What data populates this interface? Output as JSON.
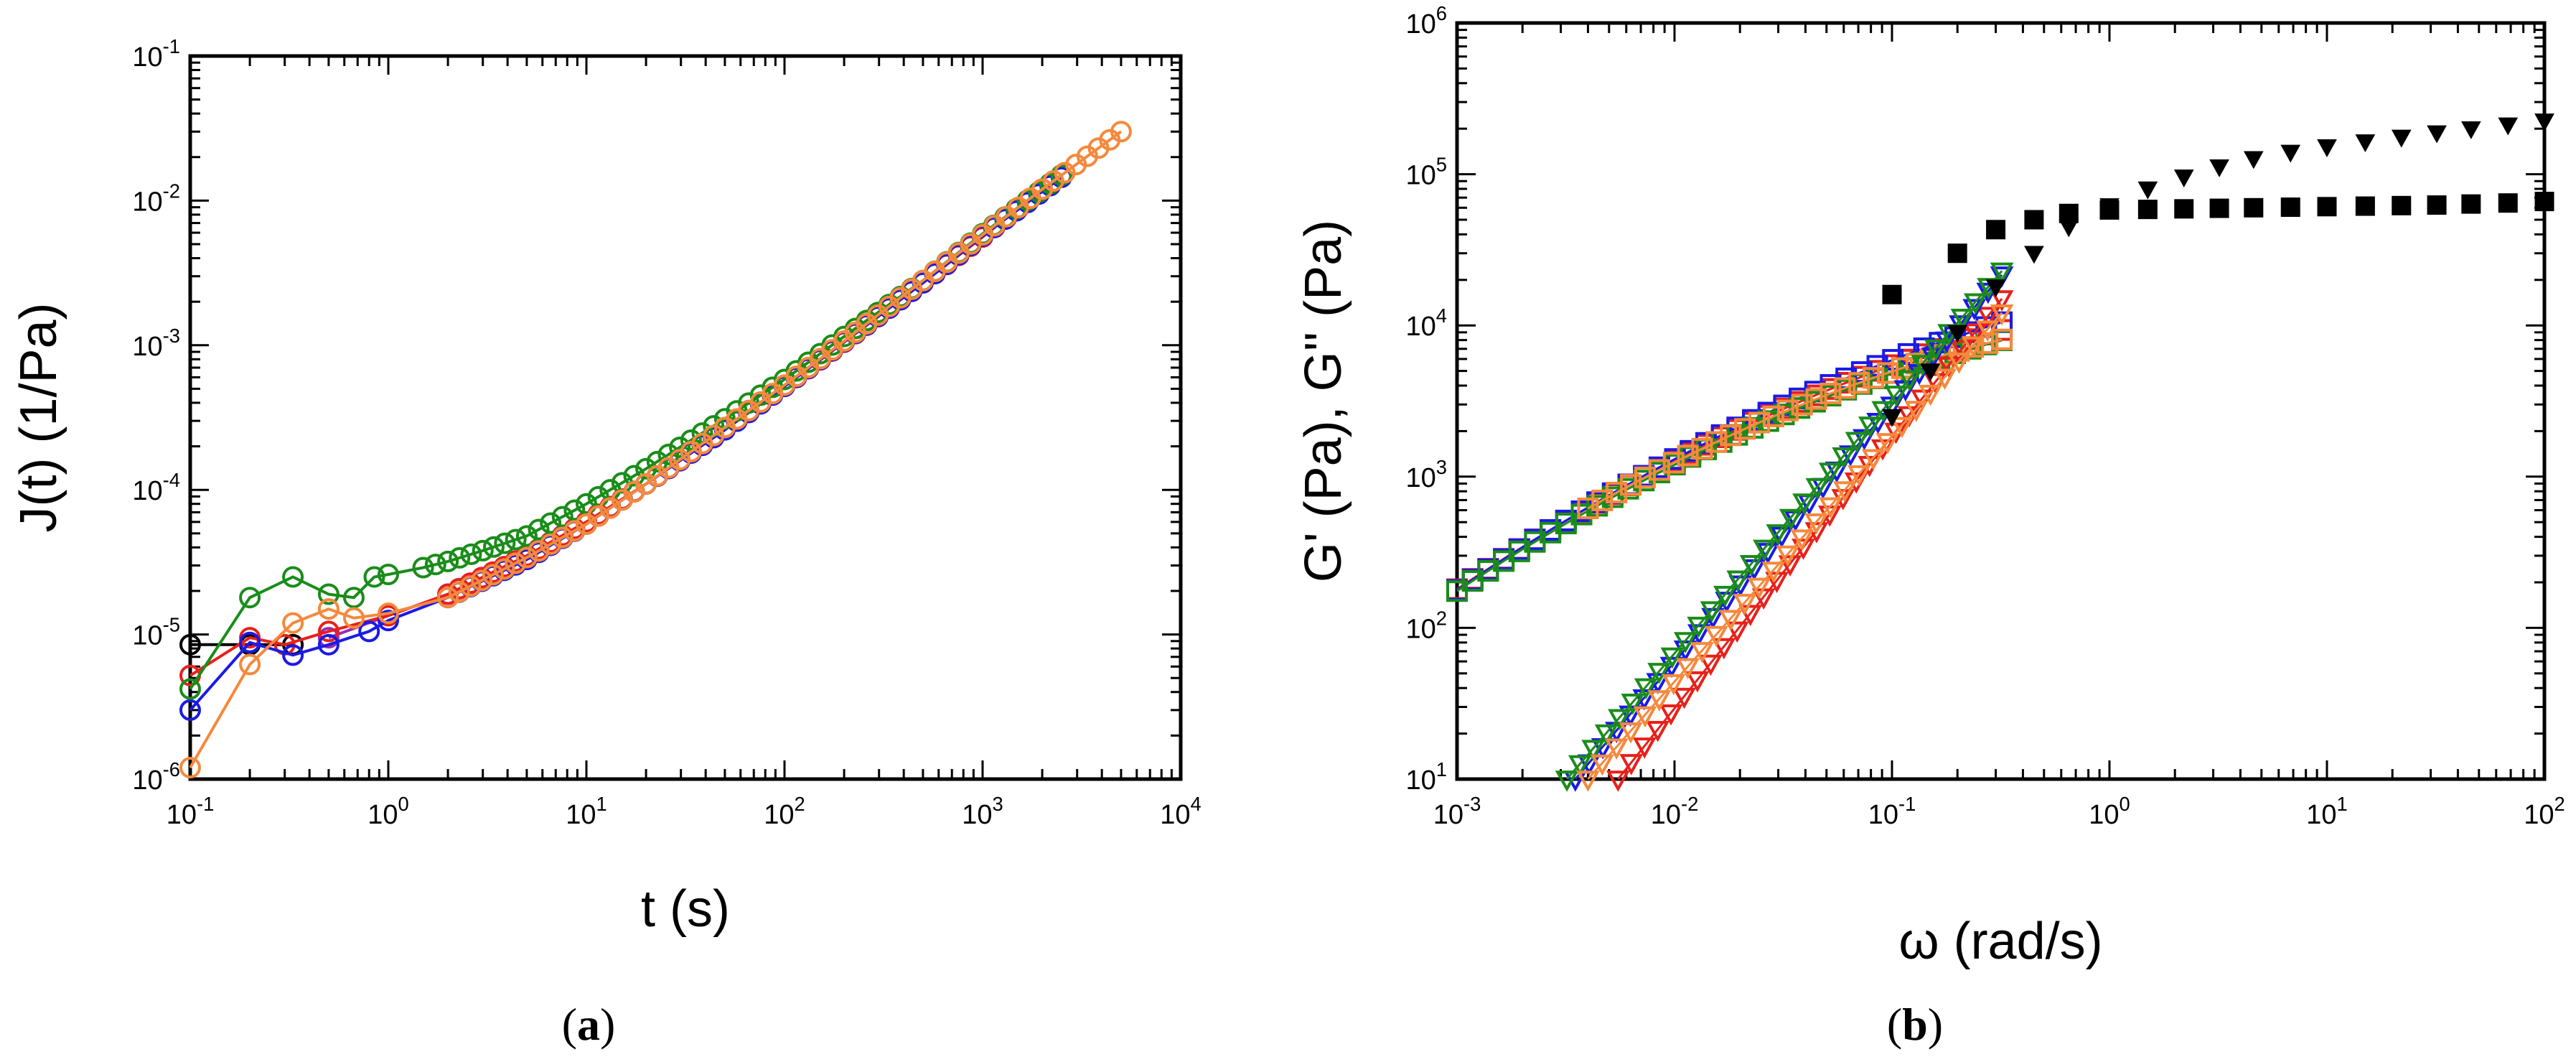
{
  "figure": {
    "panels": [
      {
        "label_prefix": "(",
        "label_letter": "a",
        "label_suffix": ")"
      },
      {
        "label_prefix": "(",
        "label_letter": "b",
        "label_suffix": ")"
      }
    ]
  },
  "chart_data": [
    {
      "id": "a",
      "type": "line",
      "xscale": "log",
      "yscale": "log",
      "xlabel": "t (s)",
      "ylabel": "J(t) (1/Pa)",
      "xlim": [
        0.1,
        10000
      ],
      "ylim": [
        1e-06,
        0.1
      ],
      "xticks": [
        {
          "value": 0.1,
          "base": "10",
          "exp": "-1"
        },
        {
          "value": 1,
          "base": "10",
          "exp": "0"
        },
        {
          "value": 10,
          "base": "10",
          "exp": "1"
        },
        {
          "value": 100,
          "base": "10",
          "exp": "2"
        },
        {
          "value": 1000,
          "base": "10",
          "exp": "3"
        },
        {
          "value": 10000,
          "base": "10",
          "exp": "4"
        }
      ],
      "yticks": [
        {
          "value": 1e-06,
          "base": "10",
          "exp": "-6"
        },
        {
          "value": 1e-05,
          "base": "10",
          "exp": "-5"
        },
        {
          "value": 0.0001,
          "base": "10",
          "exp": "-4"
        },
        {
          "value": 0.001,
          "base": "10",
          "exp": "-3"
        },
        {
          "value": 0.01,
          "base": "10",
          "exp": "-2"
        },
        {
          "value": 0.1,
          "base": "10",
          "exp": "-1"
        }
      ],
      "marker": "circle",
      "series": [
        {
          "name": "black",
          "color": "#000000",
          "x": [
            0.1,
            0.2,
            0.33
          ],
          "y": [
            8.5e-06,
            8.5e-06,
            8.5e-06
          ]
        },
        {
          "name": "purple",
          "color": "#9b2ab8",
          "x": [
            0.5,
            1,
            2,
            5,
            10,
            20,
            50,
            100,
            200
          ],
          "y": [
            9.5e-06,
            1.35e-05,
            1.9e-05,
            3.5e-05,
            6e-05,
            0.00011,
            0.00026,
            0.00052,
            0.00105
          ]
        },
        {
          "name": "red",
          "color": "#e8201a",
          "x": [
            0.1,
            0.2,
            0.3,
            0.5,
            1,
            2,
            5,
            10,
            20,
            50,
            100,
            200,
            500,
            1000,
            2000
          ],
          "y": [
            5.2e-06,
            9.5e-06,
            8.5e-06,
            1.05e-05,
            1.35e-05,
            1.9e-05,
            3.5e-05,
            6e-05,
            0.00011,
            0.00026,
            0.00052,
            0.00105,
            0.0027,
            0.0056,
            0.012
          ]
        },
        {
          "name": "blue",
          "color": "#1a1ae6",
          "x": [
            0.1,
            0.2,
            0.33,
            0.5,
            0.8,
            1,
            2,
            5,
            10,
            20,
            50,
            100,
            200,
            500,
            1000,
            2500
          ],
          "y": [
            3e-06,
            8.8e-06,
            7.2e-06,
            8.5e-06,
            1.05e-05,
            1.25e-05,
            1.8e-05,
            3.3e-05,
            5.8e-05,
            0.00011,
            0.00026,
            0.00052,
            0.00106,
            0.0027,
            0.0057,
            0.0145
          ]
        },
        {
          "name": "green",
          "color": "#1a8c1a",
          "x": [
            0.1,
            0.2,
            0.33,
            0.5,
            0.67,
            0.85,
            1,
            1.5,
            2,
            3,
            5,
            10,
            20,
            50,
            100,
            200,
            500,
            1000,
            2500
          ],
          "y": [
            4.2e-06,
            1.8e-05,
            2.5e-05,
            1.9e-05,
            1.8e-05,
            2.5e-05,
            2.6e-05,
            2.9e-05,
            3.2e-05,
            3.8e-05,
            4.8e-05,
            8e-05,
            0.00014,
            0.00031,
            0.00058,
            0.00115,
            0.0028,
            0.0059,
            0.015
          ]
        },
        {
          "name": "orange",
          "color": "#f5893c",
          "x": [
            0.1,
            0.2,
            0.33,
            0.5,
            0.67,
            1,
            2,
            5,
            10,
            20,
            50,
            100,
            200,
            500,
            1000,
            2000,
            5000
          ],
          "y": [
            1.2e-06,
            6.2e-06,
            1.2e-05,
            1.5e-05,
            1.3e-05,
            1.4e-05,
            1.8e-05,
            3.4e-05,
            5.8e-05,
            0.00011,
            0.00027,
            0.00053,
            0.00107,
            0.0028,
            0.0058,
            0.012,
            0.03
          ]
        }
      ]
    },
    {
      "id": "b",
      "type": "scatter",
      "xscale": "log",
      "yscale": "log",
      "xlabel": "ω (rad/s)",
      "ylabel": "G' (Pa), G'' (Pa)",
      "xlim": [
        0.001,
        100
      ],
      "ylim": [
        10,
        1000000
      ],
      "xticks": [
        {
          "value": 0.001,
          "base": "10",
          "exp": "-3"
        },
        {
          "value": 0.01,
          "base": "10",
          "exp": "-2"
        },
        {
          "value": 0.1,
          "base": "10",
          "exp": "-1"
        },
        {
          "value": 1,
          "base": "10",
          "exp": "0"
        },
        {
          "value": 10,
          "base": "10",
          "exp": "1"
        },
        {
          "value": 100,
          "base": "10",
          "exp": "2"
        }
      ],
      "yticks": [
        {
          "value": 10,
          "base": "10",
          "exp": "1"
        },
        {
          "value": 100,
          "base": "10",
          "exp": "2"
        },
        {
          "value": 1000,
          "base": "10",
          "exp": "3"
        },
        {
          "value": 10000,
          "base": "10",
          "exp": "4"
        },
        {
          "value": 100000,
          "base": "10",
          "exp": "5"
        },
        {
          "value": 1000000,
          "base": "10",
          "exp": "6"
        }
      ],
      "series": [
        {
          "name": "G'' purple",
          "modulus": "G''",
          "color": "#9b2ab8",
          "marker": "square-open",
          "xmin": 0.001,
          "xmax": 0.32,
          "n": 36,
          "y0": 180,
          "slope": 0.96,
          "curv": -0.11
        },
        {
          "name": "G'' red",
          "modulus": "G''",
          "color": "#e8201a",
          "marker": "square-open",
          "xmin": 0.001,
          "xmax": 0.32,
          "n": 36,
          "y0": 180,
          "slope": 0.96,
          "curv": -0.11
        },
        {
          "name": "G'' blue",
          "modulus": "G''",
          "color": "#1a1ae6",
          "marker": "square-open",
          "xmin": 0.001,
          "xmax": 0.32,
          "n": 36,
          "y0": 178,
          "slope": 0.97,
          "curv": -0.105
        },
        {
          "name": "G'' green",
          "modulus": "G''",
          "color": "#1a8c1a",
          "marker": "square-open",
          "xmin": 0.001,
          "xmax": 0.32,
          "n": 36,
          "y0": 175,
          "slope": 0.95,
          "curv": -0.115
        },
        {
          "name": "G'' orange",
          "modulus": "G''",
          "color": "#f5893c",
          "marker": "square-open",
          "xmin": 0.004,
          "xmax": 0.32,
          "n": 30,
          "y0": 180,
          "slope": 0.96,
          "curv": -0.12
        },
        {
          "name": "G' red",
          "modulus": "G'",
          "color": "#e8201a",
          "marker": "triangle-down-open",
          "xmin": 0.0055,
          "xmax": 0.32,
          "n": 30,
          "x_ref": 0.0055,
          "y_ref": 10,
          "slope": 1.8
        },
        {
          "name": "G' blue",
          "modulus": "G'",
          "color": "#1a1ae6",
          "marker": "triangle-down-open",
          "xmin": 0.0035,
          "xmax": 0.32,
          "n": 32,
          "x_ref": 0.0035,
          "y_ref": 10,
          "slope": 1.7
        },
        {
          "name": "G' green",
          "modulus": "G'",
          "color": "#1a8c1a",
          "marker": "triangle-down-open",
          "xmin": 0.0032,
          "xmax": 0.32,
          "n": 34,
          "x_ref": 0.0032,
          "y_ref": 10,
          "slope": 1.68
        },
        {
          "name": "G' orange",
          "modulus": "G'",
          "color": "#f5893c",
          "marker": "triangle-down-open",
          "xmin": 0.004,
          "xmax": 0.32,
          "n": 30,
          "x_ref": 0.004,
          "y_ref": 10,
          "slope": 1.62
        },
        {
          "name": "G'' black",
          "modulus": "G''",
          "color": "#000000",
          "marker": "square-filled",
          "x": [
            0.1,
            0.2,
            0.3,
            0.45,
            0.65,
            1,
            1.5,
            2.2,
            3.2,
            4.6,
            6.8,
            10,
            15,
            22,
            32,
            46,
            68,
            100
          ],
          "y": [
            16000,
            30000,
            43000,
            50000,
            55000,
            58000,
            58500,
            59000,
            59500,
            60000,
            60500,
            61000,
            61500,
            62000,
            62500,
            63500,
            64500,
            66000
          ]
        },
        {
          "name": "G' black",
          "modulus": "G'",
          "color": "#000000",
          "marker": "triangle-down-filled",
          "x": [
            0.1,
            0.15,
            0.2,
            0.3,
            0.45,
            0.65,
            1,
            1.5,
            2.2,
            3.2,
            4.6,
            6.8,
            10,
            15,
            22,
            32,
            46,
            68,
            100
          ],
          "y": [
            2500,
            5000,
            9000,
            18000,
            30000,
            45000,
            62000,
            80000,
            96000,
            112000,
            127000,
            140000,
            152000,
            164000,
            176000,
            188000,
            200000,
            212000,
            225000
          ]
        }
      ]
    }
  ]
}
